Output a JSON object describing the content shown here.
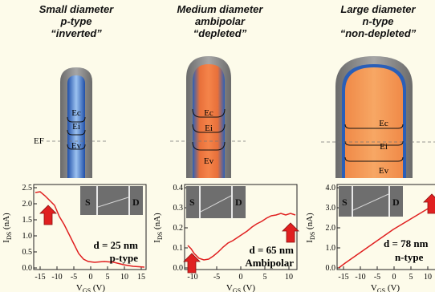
{
  "columns": [
    {
      "title": "Small diameter",
      "type": "p-type",
      "state": "“inverted”",
      "band_labels": [
        "Ec",
        "Ei",
        "Ev"
      ],
      "fermi_label": "EF",
      "core_color": "#4d86d6",
      "plot": {
        "inset_labels": [
          "S",
          "D"
        ],
        "d_label": "d = 25 nm",
        "type_label": "p-type",
        "ylabel": "I",
        "ylabel_sub": "DS",
        "yunit": " (nA)",
        "xlabel": "V",
        "xlabel_sub": "GS",
        "xunit": " (V)",
        "xticks": [
          "-15",
          "-10",
          "-5",
          "0",
          "5",
          "10",
          "15"
        ],
        "yticks": [
          "0.0",
          "0.5",
          "1.0",
          "1.5",
          "2.0",
          "2.5"
        ]
      }
    },
    {
      "title": "Medium diameter",
      "type": "ambipolar",
      "state": "“depleted”",
      "band_labels": [
        "Ec",
        "Ei",
        "Ev"
      ],
      "core_color": "#f07a3a",
      "plot": {
        "inset_labels": [
          "S",
          "D"
        ],
        "d_label": "d = 65 nm",
        "type_label": "Ambipolar",
        "ylabel": "I",
        "ylabel_sub": "DS",
        "yunit": " (nA)",
        "xlabel": "V",
        "xlabel_sub": "GS",
        "xunit": " (V)",
        "xticks": [
          "-10",
          "-5",
          "0",
          "5",
          "10"
        ],
        "yticks": [
          "0.0",
          "0.1",
          "0.2",
          "0.3",
          "0.4"
        ]
      }
    },
    {
      "title": "Large diameter",
      "type": "n-type",
      "state": "“non-depleted”",
      "band_labels": [
        "Ec",
        "Ei",
        "Ev"
      ],
      "core_color": "#f49a52",
      "plot": {
        "inset_labels": [
          "S",
          "D"
        ],
        "d_label": "d = 78 nm",
        "type_label": "n-type",
        "ylabel": "I",
        "ylabel_sub": "DS",
        "yunit": " (nA)",
        "xlabel": "V",
        "xlabel_sub": "GS",
        "xunit": " (V)",
        "xticks": [
          "-15",
          "-10",
          "-5",
          "0",
          "5",
          "10"
        ],
        "yticks": [
          "0.0",
          "1.0",
          "2.0",
          "3.0",
          "4.0"
        ]
      }
    }
  ],
  "colors": {
    "accent_arrow": "#e02020",
    "curve": "#e02020",
    "background": "#fdfbea"
  }
}
